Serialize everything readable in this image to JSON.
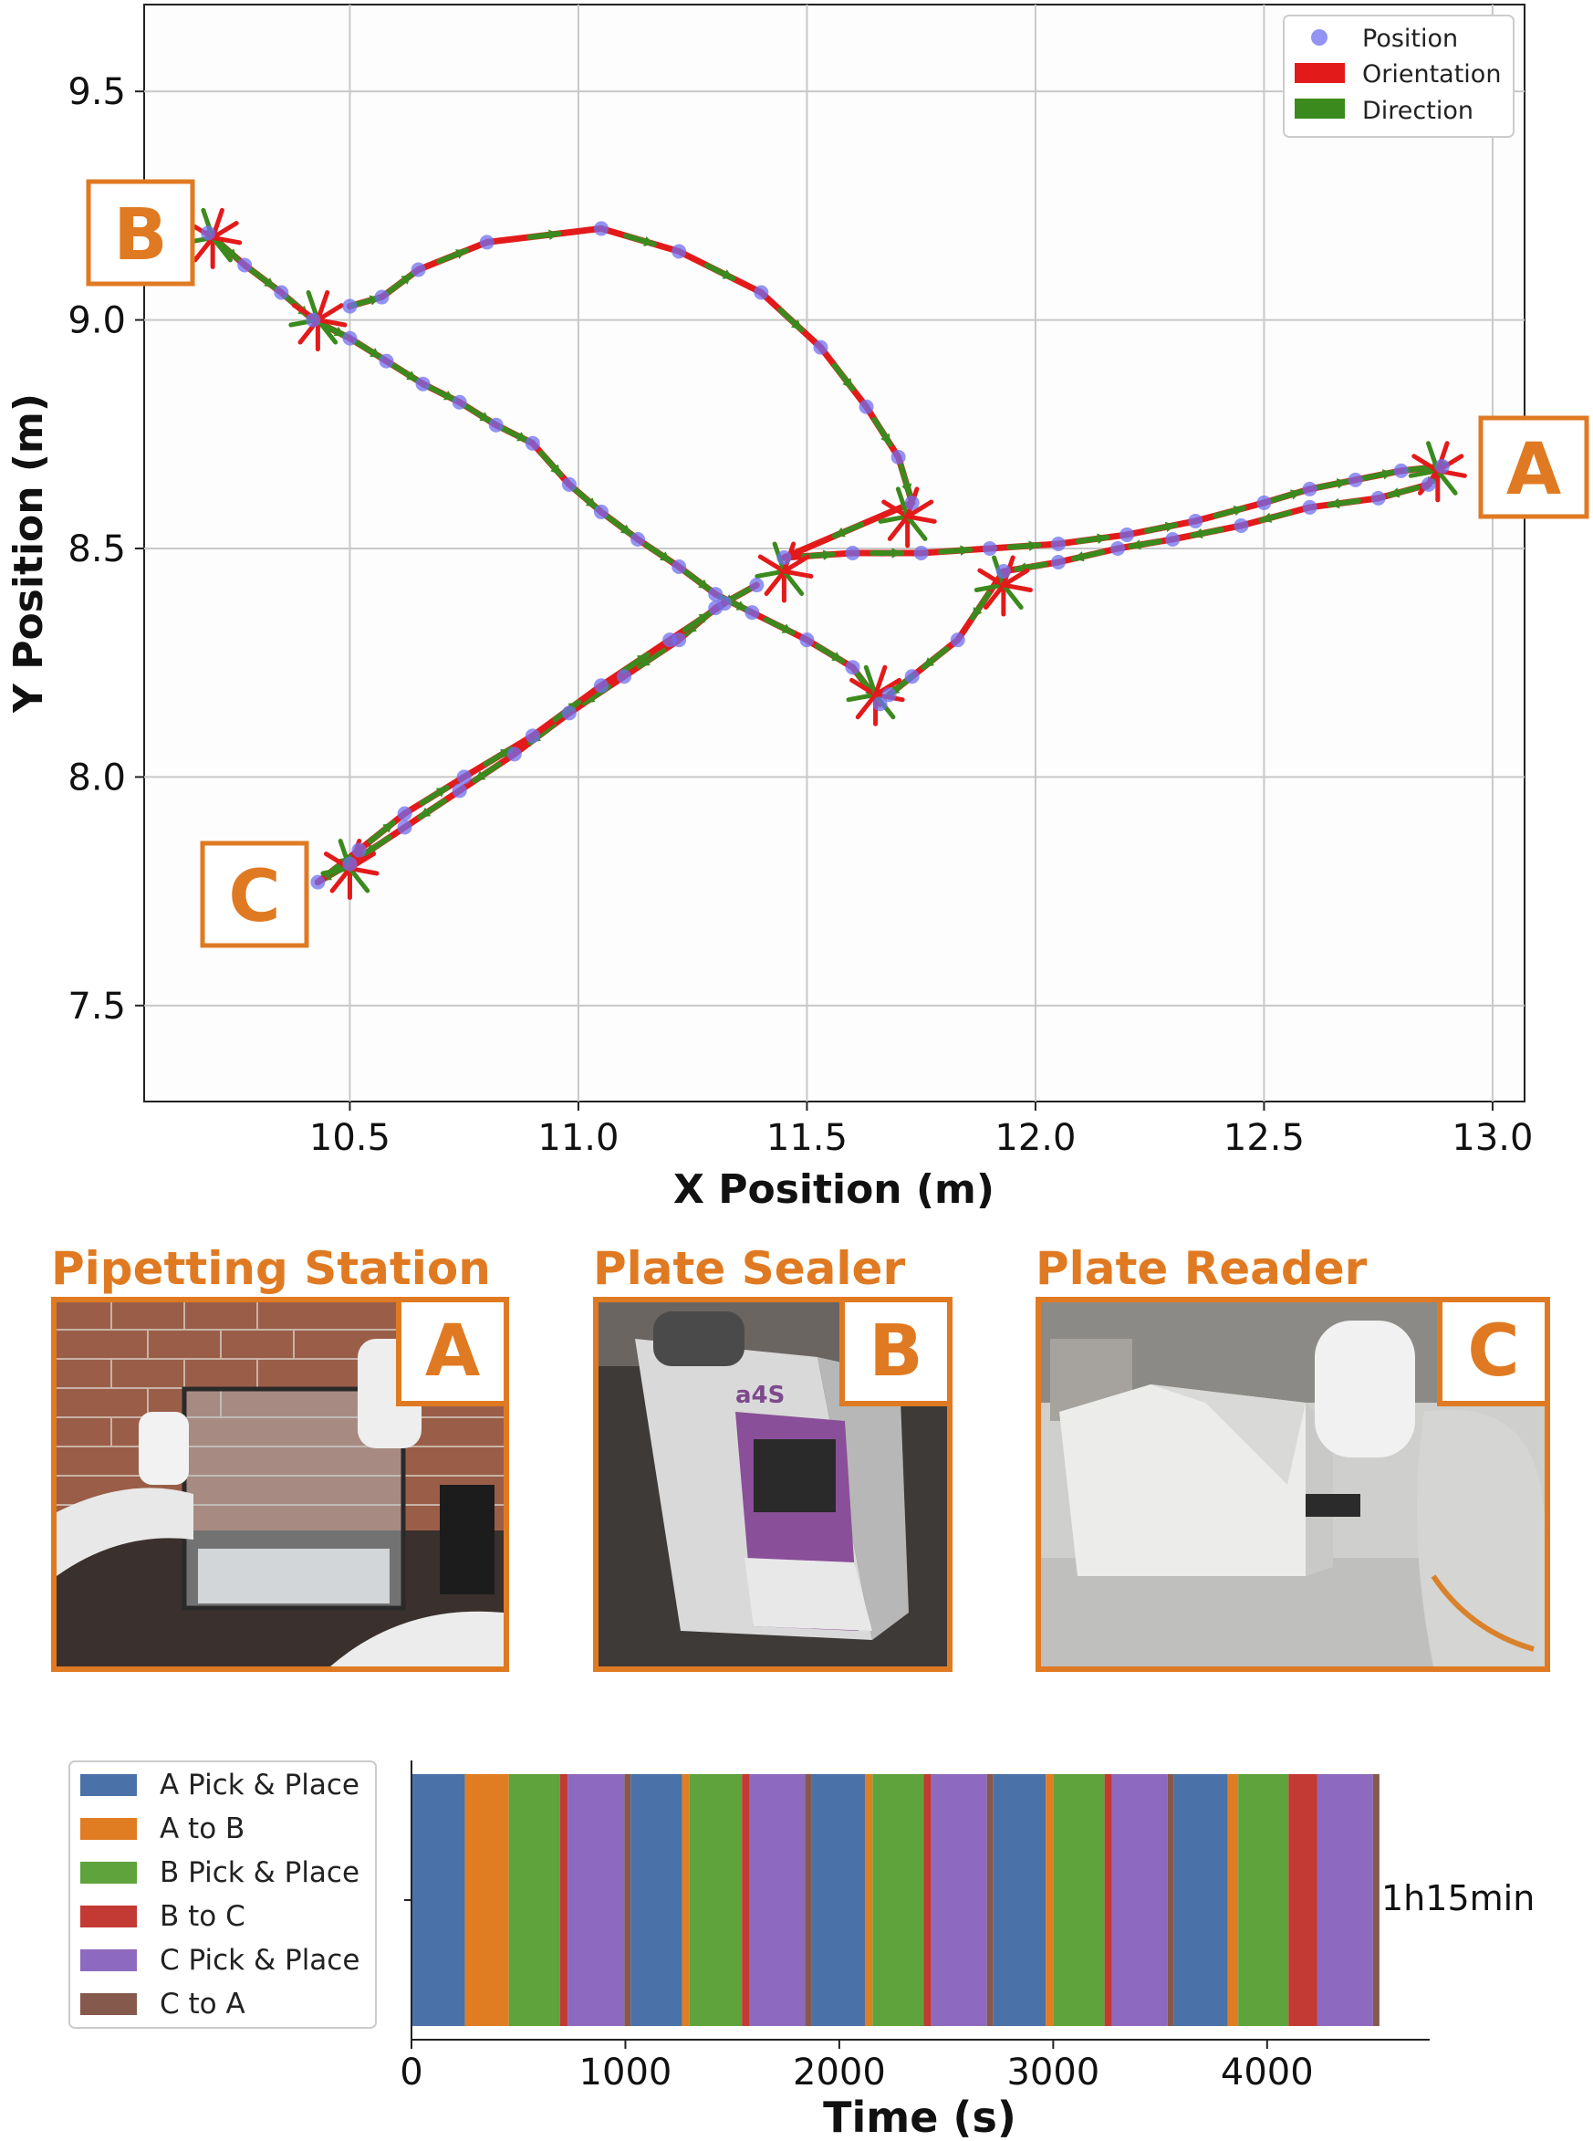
{
  "chart_data": [
    {
      "type": "scatter",
      "xlabel": "X Position (m)",
      "ylabel": "Y Position (m)",
      "xlim": [
        10.05,
        13.07
      ],
      "ylim": [
        7.29,
        9.69
      ],
      "xticks": [
        "10.5",
        "11.0",
        "11.5",
        "12.0",
        "12.5",
        "13.0"
      ],
      "xtick_values": [
        10.5,
        11.0,
        11.5,
        12.0,
        12.5,
        13.0
      ],
      "yticks": [
        "7.5",
        "8.0",
        "8.5",
        "9.0",
        "9.5"
      ],
      "ytick_values": [
        7.5,
        8.0,
        8.5,
        9.0,
        9.5
      ],
      "grid": true,
      "legend": {
        "placement": "top-right",
        "entries": [
          {
            "label": "Position",
            "color": "#6f6ff0",
            "marker": "circle"
          },
          {
            "label": "Orientation",
            "color": "#e31a1a",
            "marker": "patch"
          },
          {
            "label": "Direction",
            "color": "#3b8a1e",
            "marker": "patch"
          }
        ]
      },
      "station_labels": [
        {
          "label": "B",
          "x": 10.19,
          "y": 9.19
        },
        {
          "label": "A",
          "x": 12.92,
          "y": 8.68
        },
        {
          "label": "C",
          "x": 10.42,
          "y": 7.77
        }
      ],
      "series": [
        {
          "name": "Position",
          "points": [
            [
              10.19,
              9.19
            ],
            [
              10.27,
              9.12
            ],
            [
              10.35,
              9.06
            ],
            [
              10.42,
              9.0
            ],
            [
              10.5,
              8.96
            ],
            [
              10.58,
              8.91
            ],
            [
              10.66,
              8.86
            ],
            [
              10.74,
              8.82
            ],
            [
              10.82,
              8.77
            ],
            [
              10.9,
              8.73
            ],
            [
              10.98,
              8.64
            ],
            [
              11.05,
              8.58
            ],
            [
              11.13,
              8.52
            ],
            [
              11.22,
              8.46
            ],
            [
              11.3,
              8.4
            ],
            [
              11.38,
              8.36
            ],
            [
              11.5,
              8.3
            ],
            [
              11.6,
              8.24
            ],
            [
              11.66,
              8.16
            ],
            [
              10.5,
              9.03
            ],
            [
              10.57,
              9.05
            ],
            [
              10.65,
              9.11
            ],
            [
              10.8,
              9.17
            ],
            [
              11.05,
              9.2
            ],
            [
              11.22,
              9.15
            ],
            [
              11.4,
              9.06
            ],
            [
              11.53,
              8.94
            ],
            [
              11.63,
              8.81
            ],
            [
              11.7,
              8.7
            ],
            [
              11.73,
              8.6
            ],
            [
              11.45,
              8.48
            ],
            [
              11.6,
              8.49
            ],
            [
              11.75,
              8.49
            ],
            [
              11.9,
              8.5
            ],
            [
              12.05,
              8.51
            ],
            [
              12.2,
              8.53
            ],
            [
              12.35,
              8.56
            ],
            [
              12.5,
              8.6
            ],
            [
              12.6,
              8.63
            ],
            [
              12.7,
              8.65
            ],
            [
              12.8,
              8.67
            ],
            [
              12.89,
              8.68
            ],
            [
              12.86,
              8.64
            ],
            [
              12.75,
              8.61
            ],
            [
              12.6,
              8.59
            ],
            [
              12.45,
              8.55
            ],
            [
              12.3,
              8.52
            ],
            [
              12.18,
              8.5
            ],
            [
              12.05,
              8.47
            ],
            [
              11.93,
              8.45
            ],
            [
              11.83,
              8.3
            ],
            [
              11.73,
              8.22
            ],
            [
              11.68,
              8.18
            ],
            [
              11.39,
              8.42
            ],
            [
              11.3,
              8.37
            ],
            [
              11.22,
              8.3
            ],
            [
              11.1,
              8.22
            ],
            [
              10.98,
              8.14
            ],
            [
              10.86,
              8.05
            ],
            [
              10.74,
              7.97
            ],
            [
              10.62,
              7.89
            ],
            [
              10.5,
              7.81
            ],
            [
              10.43,
              7.77
            ],
            [
              10.52,
              7.84
            ],
            [
              10.62,
              7.92
            ],
            [
              10.75,
              8.0
            ],
            [
              10.9,
              8.09
            ],
            [
              11.05,
              8.2
            ],
            [
              11.2,
              8.3
            ],
            [
              11.32,
              8.38
            ]
          ]
        }
      ]
    },
    {
      "type": "bar",
      "orientation": "horizontal-stacked",
      "xlabel": "Time (s)",
      "xlim": [
        0,
        4760
      ],
      "xticks": [
        "0",
        "1000",
        "2000",
        "3000",
        "4000"
      ],
      "xtick_values": [
        0,
        1000,
        2000,
        3000,
        4000
      ],
      "total_label": "1h15min",
      "legend": {
        "placement": "left",
        "entries": [
          {
            "label": "A Pick & Place",
            "color": "#4a72a8"
          },
          {
            "label": "A to B",
            "color": "#e07d22"
          },
          {
            "label": "B Pick & Place",
            "color": "#5ea33b"
          },
          {
            "label": "B to C",
            "color": "#c23a33"
          },
          {
            "label": "C Pick & Place",
            "color": "#8d6abf"
          },
          {
            "label": "C to A",
            "color": "#86594d"
          }
        ]
      },
      "segments": [
        {
          "phase": "A Pick & Place",
          "start": 0,
          "end": 250
        },
        {
          "phase": "A to B",
          "start": 250,
          "end": 455
        },
        {
          "phase": "B Pick & Place",
          "start": 455,
          "end": 695
        },
        {
          "phase": "B to C",
          "start": 695,
          "end": 730
        },
        {
          "phase": "C Pick & Place",
          "start": 730,
          "end": 995
        },
        {
          "phase": "C to A",
          "start": 995,
          "end": 1025
        },
        {
          "phase": "A Pick & Place",
          "start": 1025,
          "end": 1265
        },
        {
          "phase": "A to B",
          "start": 1265,
          "end": 1300
        },
        {
          "phase": "B Pick & Place",
          "start": 1300,
          "end": 1545
        },
        {
          "phase": "B to C",
          "start": 1545,
          "end": 1580
        },
        {
          "phase": "C Pick & Place",
          "start": 1580,
          "end": 1840
        },
        {
          "phase": "C to A",
          "start": 1840,
          "end": 1870
        },
        {
          "phase": "A Pick & Place",
          "start": 1870,
          "end": 2120
        },
        {
          "phase": "A to B",
          "start": 2120,
          "end": 2155
        },
        {
          "phase": "B Pick & Place",
          "start": 2155,
          "end": 2395
        },
        {
          "phase": "B to C",
          "start": 2395,
          "end": 2430
        },
        {
          "phase": "C Pick & Place",
          "start": 2430,
          "end": 2690
        },
        {
          "phase": "C to A",
          "start": 2690,
          "end": 2720
        },
        {
          "phase": "A Pick & Place",
          "start": 2720,
          "end": 2965
        },
        {
          "phase": "A to B",
          "start": 2965,
          "end": 3000
        },
        {
          "phase": "B Pick & Place",
          "start": 3000,
          "end": 3240
        },
        {
          "phase": "B to C",
          "start": 3240,
          "end": 3275
        },
        {
          "phase": "C Pick & Place",
          "start": 3275,
          "end": 3535
        },
        {
          "phase": "C to A",
          "start": 3535,
          "end": 3565
        },
        {
          "phase": "A Pick & Place",
          "start": 3565,
          "end": 3815
        },
        {
          "phase": "A to B",
          "start": 3815,
          "end": 3865
        },
        {
          "phase": "B Pick & Place",
          "start": 3865,
          "end": 4100
        },
        {
          "phase": "B to C",
          "start": 4100,
          "end": 4235
        },
        {
          "phase": "C Pick & Place",
          "start": 4235,
          "end": 4495
        },
        {
          "phase": "C to A",
          "start": 4495,
          "end": 4525
        }
      ]
    }
  ],
  "stations": [
    {
      "title": "Pipetting Station",
      "letter": "A"
    },
    {
      "title": "Plate Sealer",
      "letter": "B"
    },
    {
      "title": "Plate Reader",
      "letter": "C"
    }
  ],
  "colors": {
    "accent": "#e07a22"
  }
}
